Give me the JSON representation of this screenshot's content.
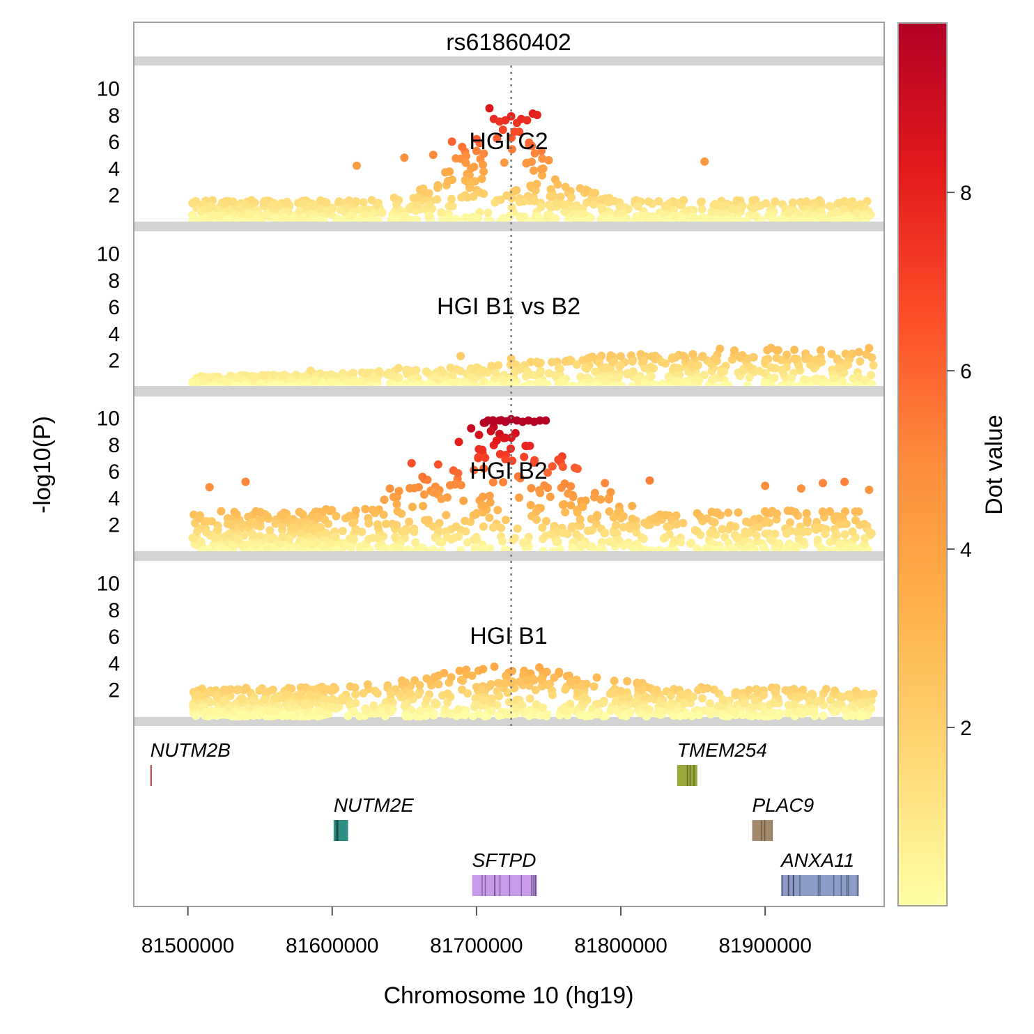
{
  "chart_data": {
    "type": "scatter",
    "title": "rs61860402",
    "xlabel": "Chromosome 10 (hg19)",
    "ylabel": "-log10(P)",
    "xlim": [
      81463000,
      81982000
    ],
    "ylim": [
      0,
      11.5
    ],
    "x_ticks": [
      81500000,
      81600000,
      81700000,
      81800000,
      81900000
    ],
    "y_ticks": [
      2,
      4,
      6,
      8,
      10
    ],
    "lead_snp_position": 81724000,
    "colorbar": {
      "label": "Dot value",
      "min": 0,
      "max": 9.9,
      "ticks": [
        2,
        4,
        6,
        8
      ],
      "colors": [
        "#ffffa8",
        "#fed976",
        "#feb24c",
        "#fd8d3c",
        "#fc4e2a",
        "#e31a1c",
        "#b10026"
      ]
    },
    "series": [
      {
        "name": "HGI C2",
        "base_peak": 0.55,
        "peak_center": 81718000,
        "peak_width": 42000,
        "points": [
          [
            81709000,
            8.5
          ],
          [
            81712000,
            7.7
          ],
          [
            81716000,
            7.5
          ],
          [
            81720000,
            7.6
          ],
          [
            81724000,
            7.9
          ],
          [
            81728000,
            7.4
          ],
          [
            81731000,
            7.7
          ],
          [
            81735000,
            7.6
          ],
          [
            81739000,
            8.1
          ],
          [
            81742000,
            8.0
          ],
          [
            81683000,
            6.0
          ],
          [
            81690000,
            5.6
          ],
          [
            81700000,
            5.3
          ],
          [
            81705000,
            5.1
          ],
          [
            81745000,
            5.3
          ],
          [
            81750000,
            4.6
          ],
          [
            81858000,
            4.5
          ],
          [
            81617000,
            4.2
          ],
          [
            81650000,
            4.8
          ],
          [
            81670000,
            5.0
          ]
        ]
      },
      {
        "name": "HGI B1 vs B2",
        "base_peak": 0.3,
        "peak_center": 81880000,
        "peak_width": 200000,
        "points": [
          [
            81585000,
            1.2
          ],
          [
            81689000,
            2.3
          ],
          [
            81724000,
            2.1
          ],
          [
            81646000,
            1.4
          ],
          [
            81785000,
            1.8
          ],
          [
            81808000,
            1.9
          ],
          [
            81838000,
            2.2
          ],
          [
            81865000,
            2.1
          ],
          [
            81888000,
            2.1
          ],
          [
            81915000,
            2.4
          ],
          [
            81950000,
            2.1
          ],
          [
            81965000,
            2.6
          ],
          [
            81972000,
            2.9
          ],
          [
            81900000,
            1.9
          ],
          [
            81935000,
            2.0
          ],
          [
            81975000,
            1.6
          ]
        ]
      },
      {
        "name": "HGI B2",
        "base_peak": 1.2,
        "peak_center": 81718000,
        "peak_width": 60000,
        "points": [
          [
            81708000,
            9.8
          ],
          [
            81712000,
            9.7
          ],
          [
            81716000,
            9.8
          ],
          [
            81720000,
            9.7
          ],
          [
            81724000,
            9.9
          ],
          [
            81728000,
            9.8
          ],
          [
            81732000,
            9.7
          ],
          [
            81736000,
            9.8
          ],
          [
            81740000,
            9.7
          ],
          [
            81744000,
            9.8
          ],
          [
            81748000,
            9.8
          ],
          [
            81710000,
            9.0
          ],
          [
            81716000,
            8.8
          ],
          [
            81714000,
            8.3
          ],
          [
            81720000,
            8.5
          ],
          [
            81704000,
            7.6
          ],
          [
            81734000,
            7.9
          ],
          [
            81706000,
            7.0
          ],
          [
            81720000,
            6.9
          ],
          [
            81655000,
            6.6
          ],
          [
            81705000,
            6.2
          ],
          [
            81737000,
            7.9
          ],
          [
            81540000,
            5.2
          ],
          [
            81515000,
            4.8
          ],
          [
            81789000,
            5.1
          ],
          [
            81820000,
            5.3
          ],
          [
            81900000,
            4.9
          ],
          [
            81925000,
            4.7
          ],
          [
            81940000,
            5.1
          ],
          [
            81955000,
            5.2
          ],
          [
            81972000,
            4.6
          ],
          [
            81640000,
            4.7
          ],
          [
            81660000,
            4.8
          ],
          [
            81670000,
            4.4
          ],
          [
            81685000,
            5.0
          ]
        ]
      },
      {
        "name": "HGI B1",
        "base_peak": 0.8,
        "peak_center": 81725000,
        "peak_width": 70000,
        "points": [
          [
            81710000,
            2.4
          ],
          [
            81715000,
            2.5
          ],
          [
            81720000,
            2.5
          ],
          [
            81725000,
            2.6
          ],
          [
            81730000,
            2.6
          ],
          [
            81735000,
            2.7
          ],
          [
            81740000,
            2.7
          ],
          [
            81745000,
            2.8
          ],
          [
            81700000,
            2.2
          ],
          [
            81690000,
            2.0
          ],
          [
            81680000,
            1.7
          ],
          [
            81770000,
            1.8
          ],
          [
            81800000,
            1.9
          ],
          [
            81860000,
            2.1
          ],
          [
            81880000,
            1.8
          ],
          [
            81915000,
            1.9
          ],
          [
            81933000,
            1.6
          ],
          [
            81963000,
            1.9
          ],
          [
            81975000,
            1.7
          ],
          [
            81585000,
            1.6
          ],
          [
            81520000,
            1.5
          ]
        ]
      }
    ],
    "genes": [
      {
        "name": "NUTM2B",
        "start": 81474000,
        "end": 81475000,
        "color": "#a5443a",
        "row": 0
      },
      {
        "name": "TMEM254",
        "start": 81839000,
        "end": 81853000,
        "color": "#9aa83c",
        "row": 0
      },
      {
        "name": "NUTM2E",
        "start": 81601000,
        "end": 81611000,
        "color": "#2f8f86",
        "row": 1
      },
      {
        "name": "PLAC9",
        "start": 81891000,
        "end": 81905000,
        "color": "#a48a6a",
        "row": 1
      },
      {
        "name": "SFTPD",
        "start": 81697000,
        "end": 81742000,
        "color": "#c79bea",
        "row": 2
      },
      {
        "name": "ANXA11",
        "start": 81911000,
        "end": 81965000,
        "color": "#8d9cc6",
        "row": 2
      }
    ]
  }
}
